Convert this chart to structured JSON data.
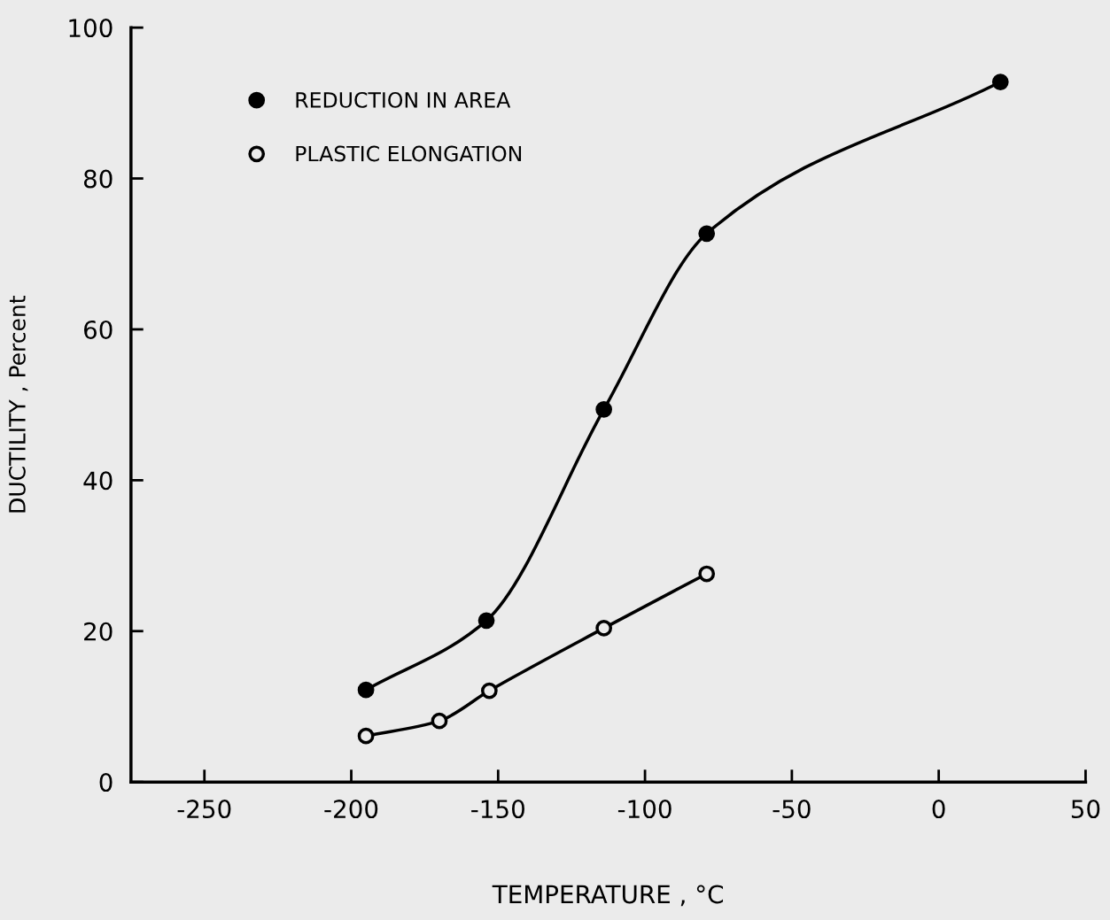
{
  "chart_data": {
    "type": "line",
    "xlabel": "TEMPERATURE , °C",
    "ylabel": "DUCTILITY , Percent",
    "xlim": [
      -275,
      50
    ],
    "xticks": [
      -250,
      -200,
      -150,
      -100,
      -50,
      0,
      50
    ],
    "ylim": [
      0,
      100
    ],
    "yticks": [
      0,
      20,
      40,
      60,
      80,
      100
    ],
    "grid": false,
    "legend": "top left",
    "marker": "circle",
    "line_style": "solid",
    "series": [
      {
        "name": "REDUCTION IN AREA",
        "color": "#000000",
        "x": [
          -195,
          -154,
          -114,
          -79,
          21
        ],
        "values": [
          12.2,
          21.4,
          49.4,
          72.7,
          92.8
        ]
      },
      {
        "name": "PLASTIC ELONGATION",
        "color": "#000000",
        "x": [
          -195,
          -170,
          -153,
          -114,
          -79
        ],
        "values": [
          6.1,
          8.1,
          12.1,
          20.4,
          27.6
        ]
      }
    ]
  }
}
